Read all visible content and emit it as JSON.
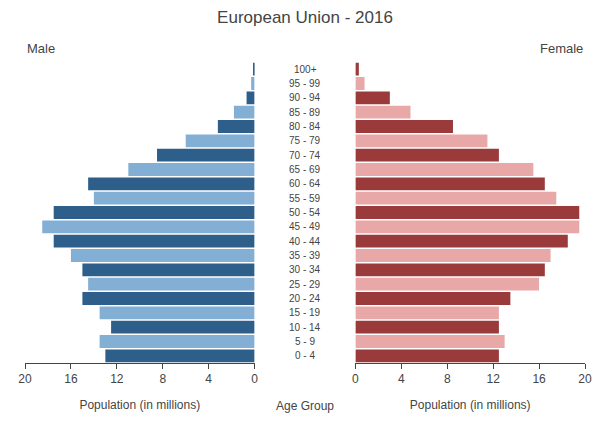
{
  "chart_data": {
    "type": "bar",
    "orientation": "horizontal",
    "title": "European Union - 2016",
    "xlabel": "Population (in millions)",
    "ylabel": "Age Group",
    "categories": [
      "0 - 4",
      "5 - 9",
      "10 - 14",
      "15 - 19",
      "20 - 24",
      "25 - 29",
      "30 - 34",
      "35 - 39",
      "40 - 44",
      "45 - 49",
      "50 - 54",
      "55 - 59",
      "60 - 64",
      "65 - 69",
      "70 - 74",
      "75 - 79",
      "80 - 84",
      "85 - 89",
      "90 - 94",
      "95 - 99",
      "100+"
    ],
    "series": [
      {
        "name": "Male",
        "values": [
          13.0,
          13.5,
          12.5,
          13.5,
          15.0,
          14.5,
          15.0,
          16.0,
          17.5,
          18.5,
          17.5,
          14.0,
          14.5,
          11.0,
          8.5,
          6.0,
          3.2,
          1.8,
          0.7,
          0.3,
          0.1
        ],
        "colors": [
          "#2e5f8a",
          "#84afd4",
          "#2e5f8a",
          "#84afd4",
          "#2e5f8a",
          "#84afd4",
          "#2e5f8a",
          "#84afd4",
          "#2e5f8a",
          "#84afd4",
          "#2e5f8a",
          "#84afd4",
          "#2e5f8a",
          "#84afd4",
          "#2e5f8a",
          "#84afd4",
          "#2e5f8a",
          "#84afd4",
          "#2e5f8a",
          "#84afd4",
          "#2e5f8a"
        ]
      },
      {
        "name": "Female",
        "values": [
          12.5,
          13.0,
          12.5,
          12.5,
          13.5,
          16.0,
          16.5,
          17.0,
          18.5,
          19.5,
          19.5,
          17.5,
          16.5,
          15.5,
          12.5,
          11.5,
          8.5,
          4.8,
          3.0,
          0.8,
          0.3
        ],
        "colors": [
          "#9b3a3a",
          "#e8a8a8",
          "#9b3a3a",
          "#e8a8a8",
          "#9b3a3a",
          "#e8a8a8",
          "#9b3a3a",
          "#e8a8a8",
          "#9b3a3a",
          "#e8a8a8",
          "#9b3a3a",
          "#e8a8a8",
          "#9b3a3a",
          "#e8a8a8",
          "#9b3a3a",
          "#e8a8a8",
          "#9b3a3a",
          "#e8a8a8",
          "#9b3a3a",
          "#e8a8a8",
          "#9b3a3a"
        ]
      }
    ],
    "xlim": [
      0,
      20
    ],
    "xticks": [
      0,
      4,
      8,
      12,
      16,
      20
    ],
    "grid": false
  }
}
